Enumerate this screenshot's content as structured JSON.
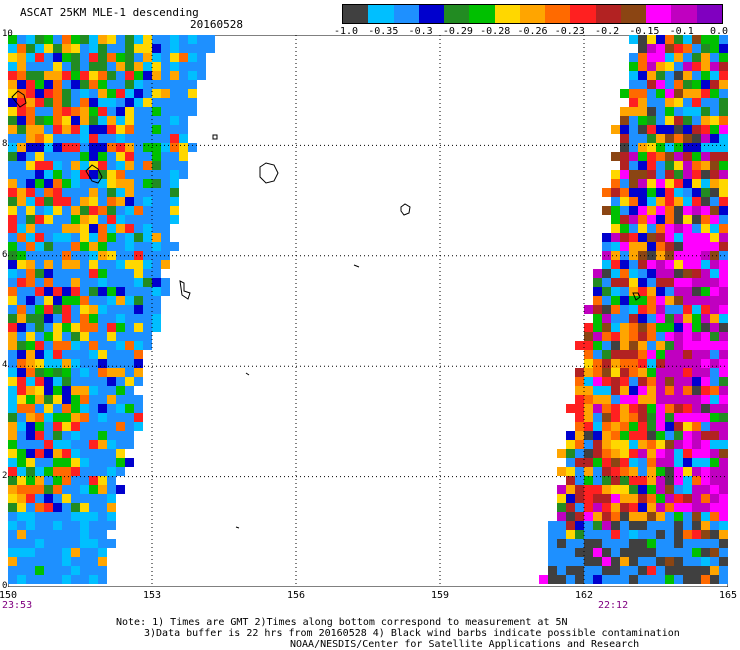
{
  "header": {
    "title": "ASCAT 25KM MLE-1 descending",
    "date": "20160528"
  },
  "colorbar": {
    "colors": [
      "#404040",
      "#00bfff",
      "#1e90ff",
      "#0000cd",
      "#228b22",
      "#00c000",
      "#ffd700",
      "#ffa500",
      "#ff6a00",
      "#ff2020",
      "#b22222",
      "#8b4513",
      "#ff00ff",
      "#c000c0",
      "#8000c0"
    ],
    "labels": [
      "-1.0",
      "-0.35",
      "-0.3",
      "-0.29",
      "-0.28",
      "-0.26",
      "-0.23",
      "-0.2",
      "-0.15",
      "-0.1",
      "0.0"
    ]
  },
  "map": {
    "lon_min": 150,
    "lon_max": 165,
    "lat_min": 0,
    "lat_max": 10,
    "x_ticks": [
      "150",
      "153",
      "156",
      "159",
      "162",
      "165"
    ],
    "y_ticks": [
      "0",
      "2",
      "4",
      "6",
      "8",
      "10"
    ],
    "time_left": "23:53",
    "time_right": "22:12",
    "palette": [
      "#1e90ff",
      "#1e90ff",
      "#00bfff",
      "#0000cd",
      "#228b22",
      "#00c000",
      "#ffd700",
      "#ffa500",
      "#ff6a00",
      "#ff2020",
      "#b22222",
      "#8b4513",
      "#ff00ff",
      "#c000c0",
      "#404040"
    ]
  },
  "notes": [
    "Note: 1) Times are GMT 2)Times along bottom correspond to measurement at 5N",
    "3)Data buffer is 22 hrs from 20160528 4) Black wind barbs indicate possible contamination",
    "NOAA/NESDIS/Center for Satellite Applications and Research"
  ]
}
